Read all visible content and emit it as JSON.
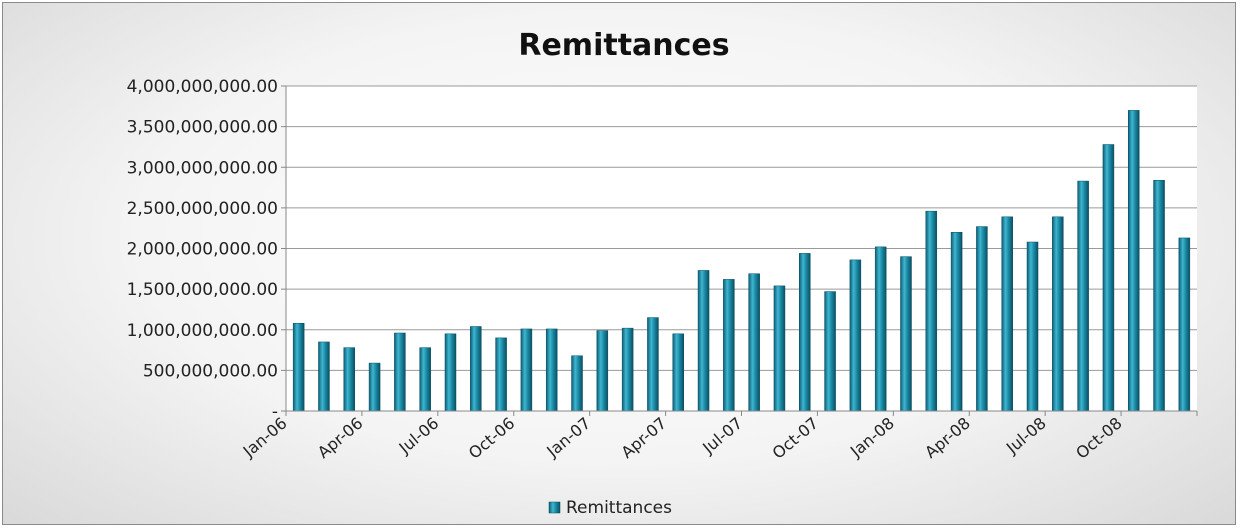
{
  "chart_data": {
    "type": "bar",
    "title": "Remittances",
    "xlabel": "",
    "ylabel": "",
    "ylim": [
      0,
      4000000000
    ],
    "yticks": [
      0,
      500000000,
      1000000000,
      1500000000,
      2000000000,
      2500000000,
      3000000000,
      3500000000,
      4000000000
    ],
    "ytick_labels": [
      "-",
      "500,000,000.00",
      "1,000,000,000.00",
      "1,500,000,000.00",
      "2,000,000,000.00",
      "2,500,000,000.00",
      "3,000,000,000.00",
      "3,500,000,000.00",
      "4,000,000,000.00"
    ],
    "categories": [
      "Jan-06",
      "Feb-06",
      "Mar-06",
      "Apr-06",
      "May-06",
      "Jun-06",
      "Jul-06",
      "Aug-06",
      "Sep-06",
      "Oct-06",
      "Nov-06",
      "Dec-06",
      "Jan-07",
      "Feb-07",
      "Mar-07",
      "Apr-07",
      "May-07",
      "Jun-07",
      "Jul-07",
      "Aug-07",
      "Sep-07",
      "Oct-07",
      "Nov-07",
      "Dec-07",
      "Jan-08",
      "Feb-08",
      "Mar-08",
      "Apr-08",
      "May-08",
      "Jun-08",
      "Jul-08",
      "Aug-08",
      "Sep-08",
      "Oct-08",
      "Nov-08",
      "Dec-08"
    ],
    "visible_xtick_labels": [
      "Jan-06",
      "Apr-06",
      "Jul-06",
      "Oct-06",
      "Jan-07",
      "Apr-07",
      "Jul-07",
      "Oct-07",
      "Jan-08",
      "Apr-08",
      "Jul-08",
      "Oct-08"
    ],
    "series": [
      {
        "name": "Remittances",
        "values": [
          1080000000,
          850000000,
          780000000,
          590000000,
          960000000,
          780000000,
          950000000,
          1040000000,
          900000000,
          1010000000,
          1010000000,
          680000000,
          990000000,
          1020000000,
          1150000000,
          950000000,
          1730000000,
          1620000000,
          1690000000,
          1540000000,
          1940000000,
          1470000000,
          1860000000,
          2020000000,
          1900000000,
          2460000000,
          2200000000,
          2270000000,
          2390000000,
          2080000000,
          2390000000,
          2830000000,
          3280000000,
          3700000000,
          2840000000,
          2130000000
        ]
      }
    ],
    "bar_color": "#1c8da8",
    "grid": true,
    "legend": "bottom"
  }
}
